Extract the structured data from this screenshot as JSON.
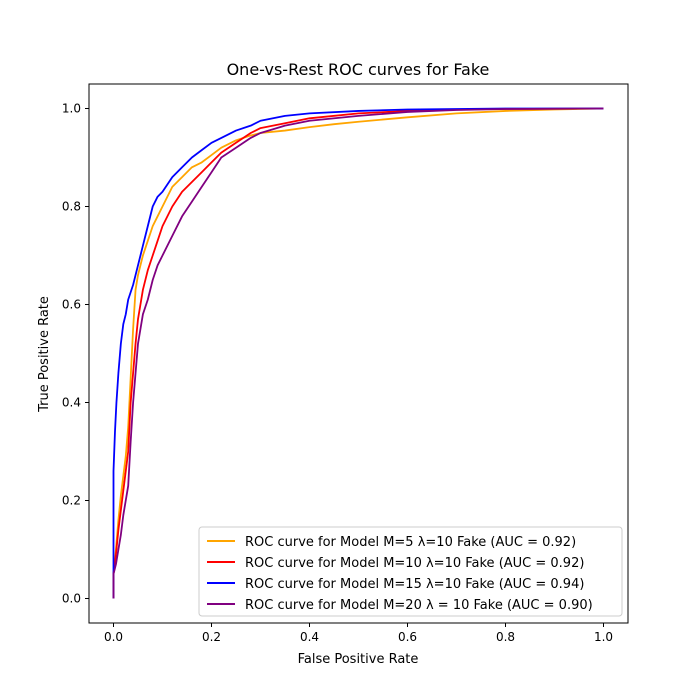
{
  "chart_data": {
    "type": "line",
    "title": "One-vs-Rest ROC curves for Fake",
    "xlabel": "False Positive Rate",
    "ylabel": "True Positive Rate",
    "xlim": [
      -0.05,
      1.05
    ],
    "ylim": [
      -0.05,
      1.05
    ],
    "xticks": [
      "0.0",
      "0.2",
      "0.4",
      "0.6",
      "0.8",
      "1.0"
    ],
    "yticks": [
      "0.0",
      "0.2",
      "0.4",
      "0.6",
      "0.8",
      "1.0"
    ],
    "grid": false,
    "legend_position": "lower-right",
    "series": [
      {
        "name": "ROC curve for Model M=5 λ=10 Fake (AUC = 0.92)",
        "color": "#ffa500",
        "x": [
          0.0,
          0.0,
          0.005,
          0.01,
          0.015,
          0.02,
          0.025,
          0.03,
          0.035,
          0.04,
          0.045,
          0.05,
          0.055,
          0.06,
          0.07,
          0.08,
          0.09,
          0.1,
          0.12,
          0.14,
          0.16,
          0.18,
          0.2,
          0.22,
          0.25,
          0.28,
          0.3,
          0.35,
          0.4,
          0.45,
          0.5,
          0.6,
          0.7,
          0.8,
          0.9,
          1.0
        ],
        "y": [
          0.0,
          0.05,
          0.1,
          0.16,
          0.21,
          0.25,
          0.29,
          0.35,
          0.45,
          0.55,
          0.63,
          0.66,
          0.68,
          0.7,
          0.73,
          0.76,
          0.78,
          0.8,
          0.84,
          0.86,
          0.88,
          0.89,
          0.905,
          0.92,
          0.935,
          0.945,
          0.95,
          0.955,
          0.962,
          0.968,
          0.973,
          0.982,
          0.99,
          0.995,
          0.998,
          1.0
        ]
      },
      {
        "name": "ROC curve for Model M=10 λ=10 Fake (AUC = 0.92)",
        "color": "#ff0000",
        "x": [
          0.0,
          0.0,
          0.005,
          0.01,
          0.015,
          0.02,
          0.025,
          0.03,
          0.035,
          0.04,
          0.045,
          0.05,
          0.055,
          0.06,
          0.07,
          0.08,
          0.09,
          0.1,
          0.12,
          0.14,
          0.16,
          0.18,
          0.2,
          0.22,
          0.25,
          0.28,
          0.3,
          0.35,
          0.4,
          0.5,
          0.6,
          0.7,
          0.8,
          1.0
        ],
        "y": [
          0.0,
          0.05,
          0.09,
          0.14,
          0.18,
          0.22,
          0.26,
          0.3,
          0.4,
          0.46,
          0.52,
          0.57,
          0.6,
          0.63,
          0.67,
          0.7,
          0.73,
          0.76,
          0.8,
          0.83,
          0.85,
          0.87,
          0.89,
          0.91,
          0.93,
          0.95,
          0.96,
          0.97,
          0.98,
          0.99,
          0.995,
          0.998,
          0.999,
          1.0
        ]
      },
      {
        "name": "ROC curve for Model M=15 λ=10 Fake (AUC = 0.94)",
        "color": "#0000ff",
        "x": [
          0.0,
          0.0,
          0.003,
          0.006,
          0.01,
          0.015,
          0.02,
          0.025,
          0.03,
          0.04,
          0.05,
          0.06,
          0.07,
          0.08,
          0.09,
          0.1,
          0.12,
          0.14,
          0.16,
          0.18,
          0.2,
          0.22,
          0.25,
          0.28,
          0.3,
          0.35,
          0.4,
          0.5,
          0.6,
          0.7,
          0.8,
          1.0
        ],
        "y": [
          0.0,
          0.26,
          0.34,
          0.4,
          0.46,
          0.52,
          0.56,
          0.58,
          0.61,
          0.64,
          0.68,
          0.72,
          0.76,
          0.8,
          0.82,
          0.83,
          0.86,
          0.88,
          0.9,
          0.915,
          0.93,
          0.94,
          0.955,
          0.965,
          0.975,
          0.985,
          0.99,
          0.995,
          0.998,
          0.999,
          1.0,
          1.0
        ]
      },
      {
        "name": "ROC curve for Model M=20 λ = 10 Fake (AUC = 0.90)",
        "color": "#800080",
        "x": [
          0.0,
          0.0,
          0.005,
          0.01,
          0.015,
          0.02,
          0.025,
          0.03,
          0.035,
          0.04,
          0.045,
          0.05,
          0.055,
          0.06,
          0.07,
          0.08,
          0.09,
          0.1,
          0.12,
          0.14,
          0.16,
          0.18,
          0.2,
          0.22,
          0.25,
          0.28,
          0.3,
          0.35,
          0.4,
          0.5,
          0.6,
          0.7,
          0.8,
          1.0
        ],
        "y": [
          0.0,
          0.05,
          0.07,
          0.1,
          0.13,
          0.17,
          0.2,
          0.23,
          0.32,
          0.4,
          0.46,
          0.52,
          0.55,
          0.58,
          0.61,
          0.65,
          0.68,
          0.7,
          0.74,
          0.78,
          0.81,
          0.84,
          0.87,
          0.9,
          0.92,
          0.94,
          0.95,
          0.965,
          0.975,
          0.985,
          0.993,
          0.997,
          0.999,
          1.0
        ]
      }
    ]
  }
}
